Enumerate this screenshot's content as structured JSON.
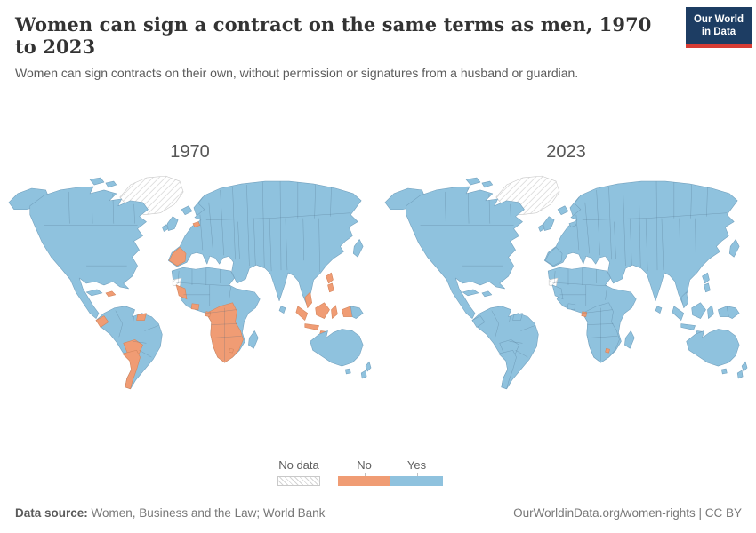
{
  "header": {
    "title": "Women can sign a contract on the same terms as men, 1970 to 2023",
    "subtitle": "Women can sign contracts on their own, without permission or signatures from a husband or guardian.",
    "logo": {
      "line1": "Our World",
      "line2": "in Data"
    }
  },
  "colors": {
    "yes": "#8FC2DE",
    "no": "#F09C74",
    "brand_navy": "#1D3D63",
    "brand_red": "#D73C34"
  },
  "chart": {
    "maps": [
      {
        "year": "1970",
        "no_data_regions": [
          "greenland",
          "western-sahara"
        ],
        "no_regions": [
          "hispaniola",
          "ecuador",
          "suriname",
          "bolivia-paraguay",
          "argentina-chile",
          "spain",
          "benelux",
          "africa-west",
          "ghana",
          "africa-south",
          "eq-guinea",
          "eswatini",
          "malay-peninsula",
          "sumatra",
          "java",
          "borneo",
          "sulawesi",
          "lesser-sunda",
          "philippines",
          "new-guinea-west"
        ]
      },
      {
        "year": "2023",
        "no_data_regions": [
          "greenland",
          "western-sahara"
        ],
        "no_regions": [
          "eq-guinea",
          "eswatini"
        ]
      }
    ]
  },
  "legend": {
    "no_data_label": "No data",
    "categories": [
      {
        "label": "No",
        "color": "#F09C74"
      },
      {
        "label": "Yes",
        "color": "#8FC2DE"
      }
    ]
  },
  "footer": {
    "source_label": "Data source:",
    "source_text": " Women, Business and the Law; World Bank",
    "url_text": "OurWorldinData.org/women-rights | CC BY"
  },
  "chart_data": {
    "type": "choropleth_map",
    "title": "Women can sign a contract on the same terms as men, 1970 to 2023",
    "subtitle": "Women can sign contracts on their own, without permission or signatures from a husband or guardian.",
    "categories": [
      "No data",
      "No",
      "Yes"
    ],
    "category_colors": {
      "No data": "white-hatched",
      "No": "#F09C74",
      "Yes": "#8FC2DE"
    },
    "panels": [
      {
        "year": "1970",
        "no": [
          "Spain",
          "Portugal",
          "Belgium",
          "Haiti",
          "Dominican Republic",
          "Ecuador",
          "Suriname",
          "Bolivia",
          "Paraguay",
          "Chile",
          "Argentina",
          "Guinea",
          "Sierra Leone",
          "Liberia",
          "Ghana",
          "Equatorial Guinea",
          "DR Congo",
          "Angola",
          "Zambia",
          "Zimbabwe",
          "Namibia",
          "Botswana",
          "South Africa",
          "Mozambique",
          "Lesotho",
          "Eswatini",
          "Malaysia",
          "Indonesia",
          "Philippines",
          "Western New Guinea"
        ],
        "no_data": [
          "Greenland",
          "Western Sahara"
        ],
        "yes": "All other countries shown in blue"
      },
      {
        "year": "2023",
        "no": [
          "Equatorial Guinea",
          "Eswatini"
        ],
        "no_data": [
          "Greenland",
          "Western Sahara"
        ],
        "yes": "All other countries shown in blue"
      }
    ],
    "legend_position": "bottom-center",
    "source": "Women, Business and the Law; World Bank"
  }
}
